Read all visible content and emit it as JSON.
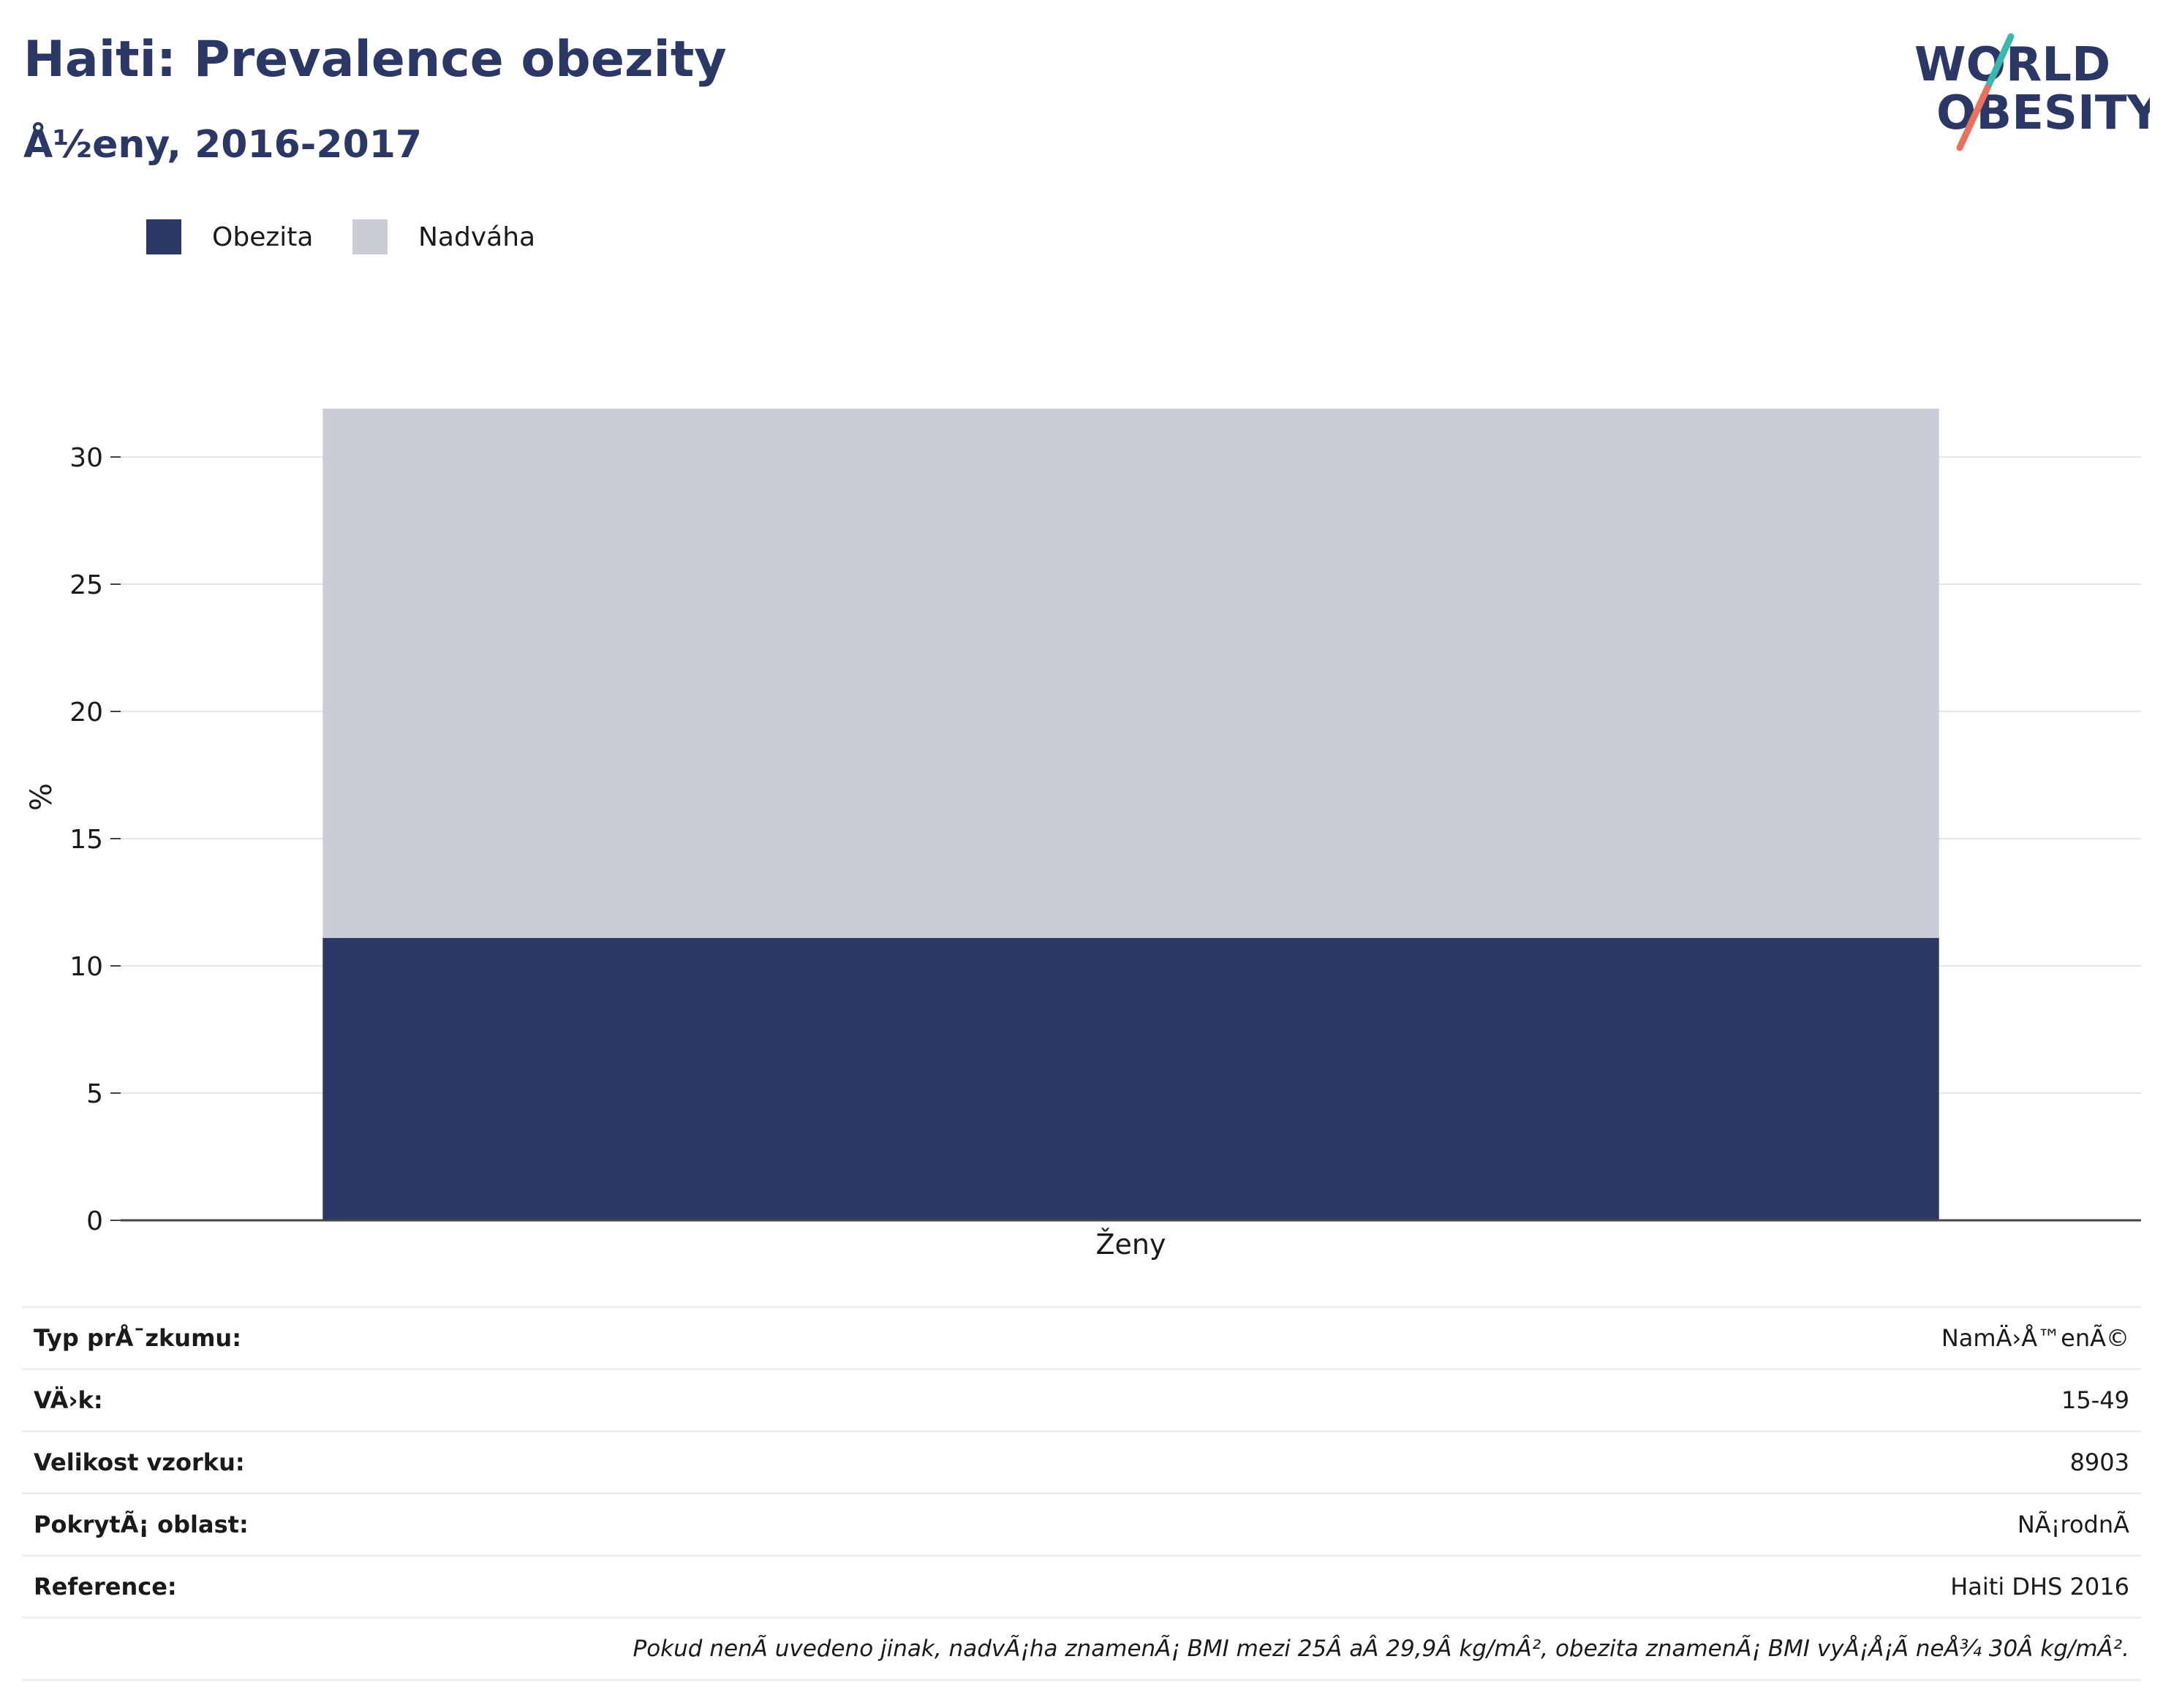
{
  "header": {
    "title": "Haiti: Prevalence obezity",
    "subtitle": "Å½eny, 2016-2017"
  },
  "logo": {
    "line1": "WORLD",
    "line2": "OBESITY"
  },
  "colors": {
    "obesity": "#2b3865",
    "overweight": "#cacdd8",
    "title": "#2b3865",
    "logo_teal": "#3ab8b0",
    "logo_coral": "#e9725f"
  },
  "chart_data": {
    "type": "bar",
    "stacked": true,
    "categories": [
      "Ženy"
    ],
    "series": [
      {
        "name": "Obezita",
        "values": [
          11.1
        ]
      },
      {
        "name": "Nadváha",
        "values": [
          20.8
        ]
      }
    ],
    "ylabel": "%",
    "ylim": [
      0,
      32
    ],
    "yticks": [
      0,
      5,
      10,
      15,
      20,
      25,
      30
    ],
    "grid": true,
    "legend": "top-left"
  },
  "info": [
    {
      "label": "Typ prÅ¯zkumu:",
      "value": "NamÄ›Å™enÃ©"
    },
    {
      "label": "VÄ›k:",
      "value": "15-49"
    },
    {
      "label": "Velikost vzorku:",
      "value": "8903"
    },
    {
      "label": "PokrytÃ¡ oblast:",
      "value": "NÃ¡rodnÃ"
    },
    {
      "label": "Reference:",
      "value": "Haiti DHS 2016"
    }
  ],
  "note": "Pokud nenÃ uvedeno jinak, nadvÃ¡ha znamenÃ¡ BMI mezi 25Â aÂ 29,9Â kg/mÂ², obezita znamenÃ¡ BMI vyÅ¡Å¡Ã neÅ¾ 30Â kg/mÂ²."
}
